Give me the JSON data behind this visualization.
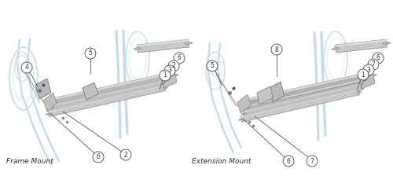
{
  "background_color": "#ffffff",
  "part_line_color": "#555555",
  "circle_fill": "#ffffff",
  "circle_edge": "#444444",
  "text_color": "#333333",
  "left_label": "Frame Mount",
  "right_label": "Extension Mount",
  "frame_color": "#c8dce8",
  "tube_fill": "#d0d0d0",
  "tube_edge": "#888888",
  "wheel_color": "#c8dce8",
  "metal_fill": "#c8c8c8",
  "metal_edge": "#888888"
}
